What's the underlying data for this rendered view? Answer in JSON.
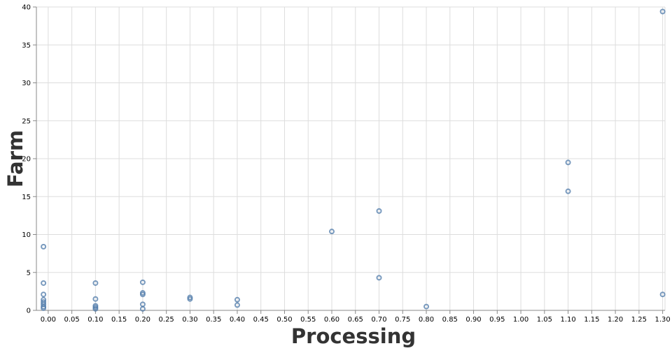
{
  "chart_data": {
    "type": "scatter",
    "title": "",
    "xlabel": "Processing",
    "ylabel": "Farm",
    "xlim": [
      -0.025,
      1.305
    ],
    "ylim": [
      0,
      40
    ],
    "x_ticks": [
      "0.00",
      "0.05",
      "0.10",
      "0.15",
      "0.20",
      "0.25",
      "0.30",
      "0.35",
      "0.40",
      "0.45",
      "0.50",
      "0.55",
      "0.60",
      "0.65",
      "0.70",
      "0.75",
      "0.80",
      "0.85",
      "0.90",
      "0.95",
      "1.00",
      "1.05",
      "1.10",
      "1.15",
      "1.20",
      "1.25",
      "1.30"
    ],
    "y_ticks": [
      "0",
      "5",
      "10",
      "15",
      "20",
      "25",
      "30",
      "35",
      "40"
    ],
    "grid": true,
    "point_color": "#4c78a8",
    "points": [
      {
        "x": -0.01,
        "y": 8.4
      },
      {
        "x": -0.01,
        "y": 3.6
      },
      {
        "x": -0.01,
        "y": 2.1
      },
      {
        "x": -0.01,
        "y": 1.4
      },
      {
        "x": -0.01,
        "y": 1.1
      },
      {
        "x": -0.01,
        "y": 0.8
      },
      {
        "x": -0.01,
        "y": 0.5
      },
      {
        "x": -0.01,
        "y": 0.3
      },
      {
        "x": 0.1,
        "y": 3.6
      },
      {
        "x": 0.1,
        "y": 1.5
      },
      {
        "x": 0.1,
        "y": 0.6
      },
      {
        "x": 0.1,
        "y": 0.4
      },
      {
        "x": 0.1,
        "y": 0.2
      },
      {
        "x": 0.2,
        "y": 3.7
      },
      {
        "x": 0.2,
        "y": 2.3
      },
      {
        "x": 0.2,
        "y": 2.1
      },
      {
        "x": 0.2,
        "y": 0.8
      },
      {
        "x": 0.2,
        "y": 0.2
      },
      {
        "x": 0.3,
        "y": 1.7
      },
      {
        "x": 0.3,
        "y": 1.5
      },
      {
        "x": 0.4,
        "y": 1.4
      },
      {
        "x": 0.4,
        "y": 0.7
      },
      {
        "x": 0.6,
        "y": 10.4
      },
      {
        "x": 0.7,
        "y": 13.1
      },
      {
        "x": 0.7,
        "y": 4.3
      },
      {
        "x": 0.8,
        "y": 0.5
      },
      {
        "x": 1.1,
        "y": 19.5
      },
      {
        "x": 1.1,
        "y": 15.7
      },
      {
        "x": 1.3,
        "y": 39.4
      },
      {
        "x": 1.3,
        "y": 2.1
      }
    ]
  }
}
